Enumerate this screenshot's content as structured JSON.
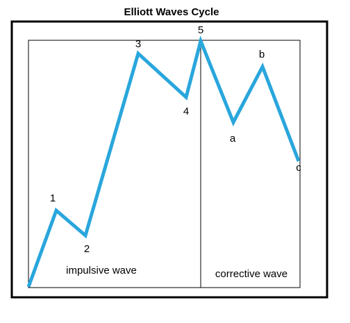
{
  "title": "Elliott Waves Cycle",
  "wave_color": "#29a6dc",
  "captions": {
    "impulsive": "impulsive wave",
    "corrective": "corrective wave"
  },
  "points": [
    {
      "label": ""
    },
    {
      "label": "1"
    },
    {
      "label": "2"
    },
    {
      "label": "3"
    },
    {
      "label": "4"
    },
    {
      "label": "5"
    },
    {
      "label": "a"
    },
    {
      "label": "b"
    },
    {
      "label": "c"
    }
  ]
}
